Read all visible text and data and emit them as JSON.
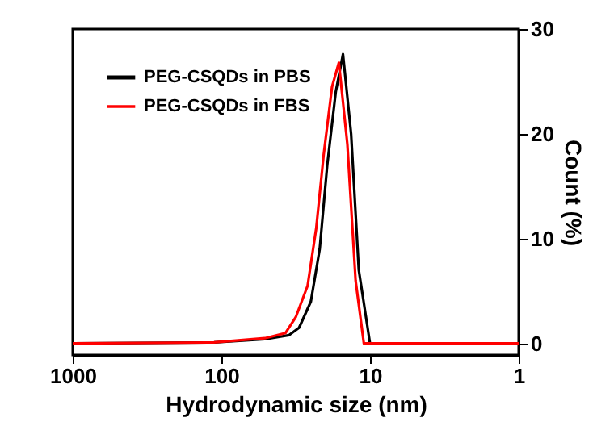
{
  "chart_data": {
    "type": "line",
    "xlabel": "Hydrodynamic size (nm)",
    "ylabel": "Count (%)",
    "log": "x",
    "xlim": [
      1000,
      1
    ],
    "xticks": [
      1000,
      100,
      10,
      1
    ],
    "ylim": [
      -1.1,
      30
    ],
    "yticks": [
      0,
      10,
      20,
      30
    ],
    "grid": false,
    "legend": "top left",
    "line_style": "solid",
    "marker": "none",
    "series": [
      {
        "name": "PEG-CSQDs in PBS",
        "color": "#000000",
        "x": [
          1000,
          112,
          51,
          35,
          30,
          25,
          21.8,
          19.4,
          17,
          15.2,
          13.4,
          11.9,
          10,
          1
        ],
        "values": [
          0,
          0.1,
          0.4,
          0.8,
          1.5,
          4,
          9,
          17,
          24,
          27.6,
          20,
          7,
          0,
          0
        ]
      },
      {
        "name": "PEG-CSQDs in FBS",
        "color": "#ff0000",
        "x": [
          1000,
          112,
          51,
          37,
          31.6,
          26.3,
          23,
          20.5,
          18,
          16.2,
          14.2,
          12.5,
          11,
          1
        ],
        "values": [
          0,
          0.1,
          0.5,
          1,
          2.5,
          5.5,
          11,
          18,
          24.5,
          26.8,
          19,
          6,
          0,
          0
        ]
      }
    ]
  }
}
